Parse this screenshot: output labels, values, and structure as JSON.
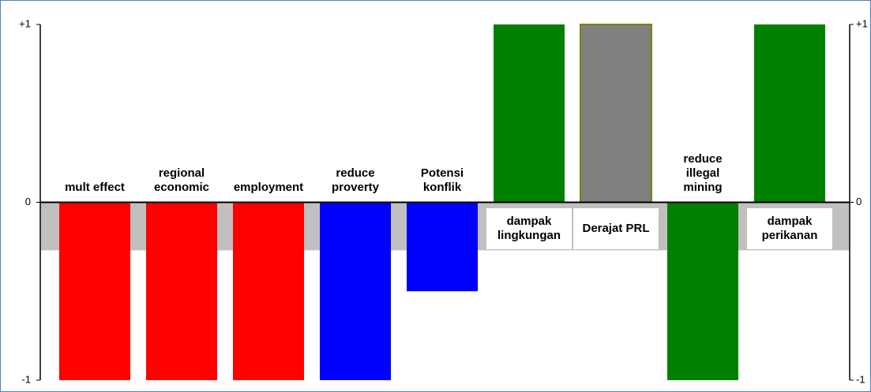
{
  "chart_data": {
    "type": "bar",
    "categories": [
      "mult effect",
      "regional\neconomic",
      "employment",
      "reduce\nproverty",
      "Potensi\nkonflik",
      "dampak\nlingkungan",
      "Derajat PRL",
      "reduce\nillegal\nmining",
      "dampak\nperikanan"
    ],
    "values": [
      -1,
      -1,
      -1,
      -1,
      -0.5,
      1,
      1,
      -1,
      1
    ],
    "colors": [
      "#ff0000",
      "#ff0000",
      "#ff0000",
      "#0000ff",
      "#0000ff",
      "#008000",
      "#808080",
      "#008000",
      "#008000"
    ],
    "ylim": [
      -1,
      1
    ],
    "yticks": [
      {
        "value": -1,
        "label": "-1"
      },
      0,
      {
        "value": 1,
        "label": "+1"
      }
    ],
    "band": {
      "range": [
        -0.27,
        0
      ],
      "color": "#c0c0c0"
    }
  }
}
